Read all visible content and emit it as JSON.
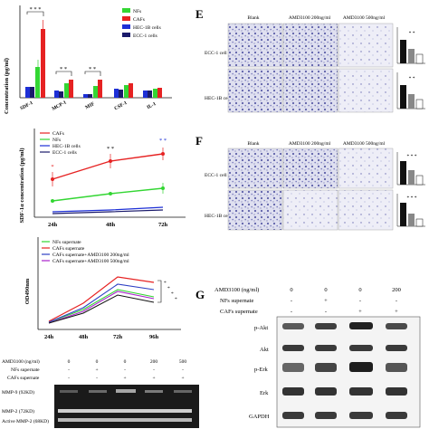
{
  "colors": {
    "nfs": "#33d633",
    "cafs": "#e62222",
    "hec": "#1d2fd6",
    "ecc": "#1a1a6b",
    "amd200": "#2d3fc4",
    "amd500": "#aa22cc",
    "micrograph": "#c9cbe6",
    "blot": "#3a3a3a"
  },
  "panelA": {
    "ylabel": "Concentration (pg/ml)",
    "legend": [
      "NFs",
      "CAFs",
      "HEC-1B cells",
      "ECC-1 cells"
    ],
    "categories": [
      "SDF-1",
      "MCP-1",
      "MIF",
      "CSF-1",
      "IL-1"
    ],
    "sig": [
      "* * *",
      "* *",
      "* *"
    ]
  },
  "panelB": {
    "ylabel": "SDF-1α concentration (pg/ml)",
    "legend": [
      "CAFs",
      "NFs",
      "HEC-1B cells",
      "ECC-1 cells"
    ],
    "x": [
      "24h",
      "48h",
      "72h"
    ],
    "sig": [
      "*",
      "* *",
      "* *"
    ]
  },
  "panelC": {
    "ylabel": "OD490nm",
    "legend": [
      "NFs supernate",
      "CAFs supernate",
      "CAFs supernate+AMD3100 200ng/ml",
      "CAFs supernate+AMD3100 500ng/ml"
    ],
    "x": [
      "24h",
      "48h",
      "72h",
      "96h"
    ],
    "sig": [
      "*",
      "*",
      "*",
      "*"
    ]
  },
  "panelD": {
    "rows": [
      {
        "label": "AMD3100 (ng/ml)",
        "vals": [
          "0",
          "0",
          "0",
          "200",
          "500"
        ]
      },
      {
        "label": "NFs supernate",
        "vals": [
          "-",
          "+",
          "-",
          "-",
          "-"
        ]
      },
      {
        "label": "CAFs supernate",
        "vals": [
          "-",
          "-",
          "+",
          "+",
          "+"
        ]
      }
    ],
    "bands": [
      "MMP-9 (92KD)",
      "MMP-2 (72KD)",
      "Active MMP-2 (68KD)"
    ]
  },
  "panelE": {
    "letter": "E",
    "cols": [
      "Blank",
      "AMD3100 200ng/ml",
      "AMD3100 500ng/ml"
    ],
    "rows": [
      "ECC-1 cell",
      "HEC-1B cell"
    ],
    "sig": "* *"
  },
  "panelF": {
    "letter": "F",
    "cols": [
      "Blank",
      "AMD3100 200ng/ml",
      "AMD3100 500ng/ml"
    ],
    "rows": [
      "ECC-1 cell",
      "HEC-1B cell"
    ],
    "sig": "* * *"
  },
  "panelG": {
    "letter": "G",
    "rows": [
      {
        "label": "AMD3100 (ng/ml)",
        "vals": [
          "0",
          "0",
          "0",
          "200"
        ]
      },
      {
        "label": "NFs supernate",
        "vals": [
          "-",
          "+",
          "-",
          "-"
        ]
      },
      {
        "label": "CAFs supernate",
        "vals": [
          "-",
          "-",
          "+",
          "+"
        ]
      }
    ],
    "bands": [
      "p-Akt",
      "Akt",
      "p-Erk",
      "Erk",
      "GAPDH"
    ]
  }
}
